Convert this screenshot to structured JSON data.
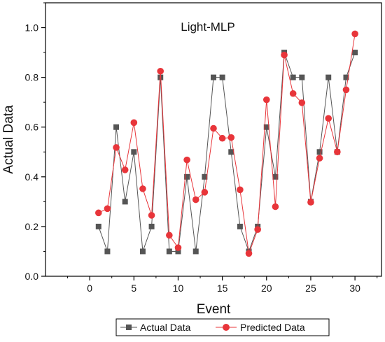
{
  "chart_data": {
    "type": "line",
    "title": "Light-MLP",
    "xlabel": "Event",
    "ylabel": "Actual Data",
    "xlim": [
      -5,
      33
    ],
    "ylim": [
      0.0,
      1.1
    ],
    "xticks": [
      0,
      5,
      10,
      15,
      20,
      25,
      30
    ],
    "xtick_labels": [
      "0",
      "5",
      "10",
      "15",
      "20",
      "25",
      "30"
    ],
    "yticks": [
      0.0,
      0.2,
      0.4,
      0.6,
      0.8,
      1.0
    ],
    "ytick_labels": [
      "0.0",
      "0.2",
      "0.4",
      "0.6",
      "0.8",
      "1.0"
    ],
    "grid": false,
    "legend_position": "bottom",
    "x": [
      1,
      2,
      3,
      4,
      5,
      6,
      7,
      8,
      9,
      10,
      11,
      12,
      13,
      14,
      15,
      16,
      17,
      18,
      19,
      20,
      21,
      22,
      23,
      24,
      25,
      26,
      27,
      28,
      29,
      30
    ],
    "series": [
      {
        "name": "Actual Data",
        "color": "#555555",
        "marker": "square",
        "values": [
          0.2,
          0.1,
          0.6,
          0.3,
          0.5,
          0.1,
          0.2,
          0.8,
          0.1,
          0.1,
          0.4,
          0.1,
          0.4,
          0.8,
          0.8,
          0.5,
          0.2,
          0.1,
          0.2,
          0.6,
          0.4,
          0.9,
          0.8,
          0.8,
          0.3,
          0.5,
          0.8,
          0.5,
          0.8,
          0.9
        ]
      },
      {
        "name": "Predicted Data",
        "color": "#e8353a",
        "marker": "circle",
        "values": [
          0.255,
          0.272,
          0.518,
          0.428,
          0.618,
          0.352,
          0.245,
          0.825,
          0.165,
          0.115,
          0.468,
          0.308,
          0.338,
          0.595,
          0.555,
          0.558,
          0.348,
          0.092,
          0.188,
          0.71,
          0.28,
          0.89,
          0.735,
          0.698,
          0.298,
          0.475,
          0.635,
          0.5,
          0.75,
          0.975
        ]
      }
    ]
  }
}
